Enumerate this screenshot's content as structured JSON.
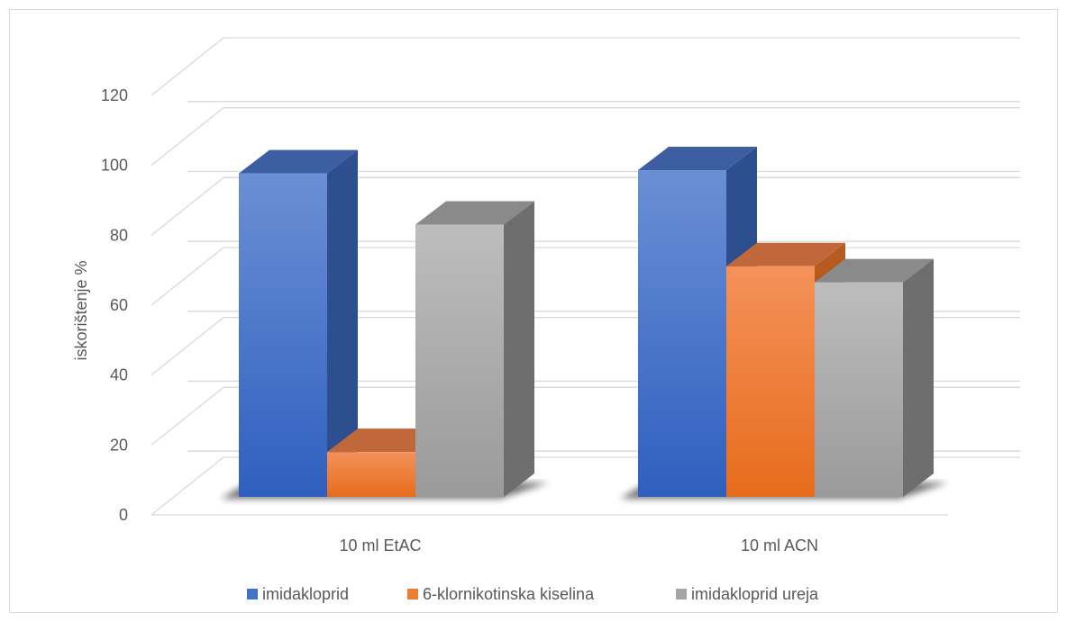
{
  "chart_data": {
    "type": "bar",
    "ylabel": "iskorištenje %",
    "xlabel": "",
    "ylim": [
      0,
      120
    ],
    "yticks": [
      0,
      20,
      40,
      60,
      80,
      100,
      120
    ],
    "categories": [
      "10 ml EtAC",
      "10 ml ACN"
    ],
    "series": [
      {
        "name": "imidakloprid",
        "values": [
          101,
          102
        ]
      },
      {
        "name": "6-klornikotinska kiselina",
        "values": [
          14,
          72
        ]
      },
      {
        "name": "imidakloprid ureja",
        "values": [
          85,
          67
        ]
      }
    ],
    "legend_position": "bottom",
    "grid": true
  },
  "colors": {
    "imidakloprid": "#4472c4",
    "6-klornikotinska kiselina": "#ed7d31",
    "imidakloprid ureja": "#a5a5a5",
    "grid": "#d9d9d9",
    "text": "#595959"
  }
}
